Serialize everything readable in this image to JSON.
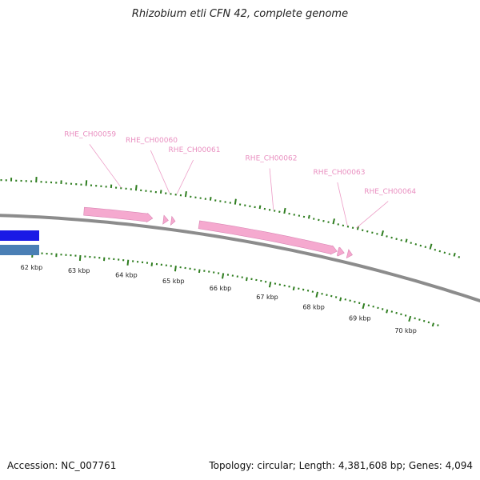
{
  "title": "Rhizobium etli CFN 42, complete genome",
  "footer": {
    "accession": "Accession: NC_007761",
    "summary": "Topology: circular; Length: 4,381,608 bp; Genes: 4,094"
  },
  "colors": {
    "backbone": "#8c8c8c",
    "gene_fill": "#f5a9cf",
    "gene_label": "#e98fc0",
    "leader_line": "#ec9cc6",
    "tick": "#2e7d1f",
    "feature_blue": "#1a1ae6",
    "feature_steel": "#4a7fb5"
  },
  "scale": {
    "unit": "kbp",
    "labels": [
      "62 kbp",
      "63 kbp",
      "64 kbp",
      "65 kbp",
      "66 kbp",
      "67 kbp",
      "68 kbp",
      "69 kbp",
      "70 kbp"
    ]
  },
  "genes": [
    {
      "name": "RHE_CH00059",
      "start_kbp": 63.0,
      "end_kbp": 64.4,
      "strand": "+"
    },
    {
      "name": "RHE_CH00060",
      "start_kbp": 64.62,
      "end_kbp": 64.72,
      "strand": "+"
    },
    {
      "name": "RHE_CH00061",
      "start_kbp": 64.78,
      "end_kbp": 64.86,
      "strand": "+"
    },
    {
      "name": "RHE_CH00062",
      "start_kbp": 65.35,
      "end_kbp": 68.2,
      "strand": "+"
    },
    {
      "name": "RHE_CH00063",
      "start_kbp": 68.22,
      "end_kbp": 68.35,
      "strand": "+"
    },
    {
      "name": "RHE_CH00064",
      "start_kbp": 68.42,
      "end_kbp": 68.52,
      "strand": "+"
    }
  ]
}
